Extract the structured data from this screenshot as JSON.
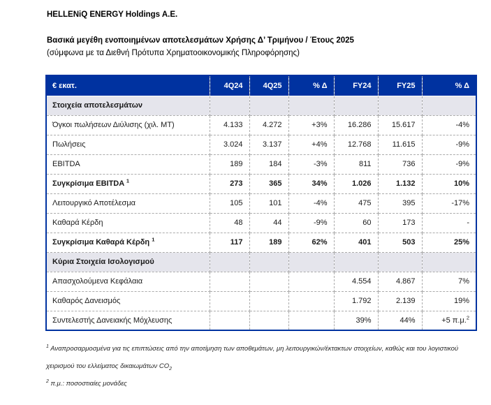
{
  "colors": {
    "header_bg": "#0032A0",
    "header_text": "#FFFFFF",
    "section_bg": "#E5E5EC",
    "grid_dash": "#ABABAB",
    "outer_border": "#0032A0",
    "body_text": "#1A1A1A"
  },
  "header": {
    "title": "HELLENiQ ENERGY Holdings A.E.",
    "subtitle": "Βασικά μεγέθη ενοποιημένων αποτελεσμάτων Χρήσης Δ’ Τριμήνου / Έτους 2025",
    "subtitle_note": "(σύμφωνα με τα Διεθνή Πρότυπα Χρηματοοικονομικής Πληροφόρησης)"
  },
  "table": {
    "columns": [
      "€ εκατ.",
      "4Q24",
      "4Q25",
      "% Δ",
      "FY24",
      "FY25",
      "% Δ"
    ],
    "rows": [
      {
        "type": "section",
        "label": "Στοιχεία αποτελεσμάτων"
      },
      {
        "type": "data",
        "label": "Όγκοι πωλήσεων Διύλισης (χιλ. ΜΤ)",
        "bold": false,
        "label_sup": "",
        "values": [
          "4.133",
          "4.272",
          "+3%",
          "16.286",
          "15.617",
          "-4%"
        ]
      },
      {
        "type": "data",
        "label": "Πωλήσεις",
        "bold": false,
        "label_sup": "",
        "values": [
          "3.024",
          "3.137",
          "+4%",
          "12.768",
          "11.615",
          "-9%"
        ]
      },
      {
        "type": "data",
        "label": "EBITDA",
        "bold": false,
        "label_sup": "",
        "values": [
          "189",
          "184",
          "-3%",
          "811",
          "736",
          "-9%"
        ]
      },
      {
        "type": "data",
        "label": "Συγκρίσιμα EBITDA",
        "bold": true,
        "label_sup": "1",
        "values": [
          "273",
          "365",
          "34%",
          "1.026",
          "1.132",
          "10%"
        ]
      },
      {
        "type": "data",
        "label": "Λειτουργικό Αποτέλεσμα",
        "bold": false,
        "label_sup": "",
        "values": [
          "105",
          "101",
          "-4%",
          "475",
          "395",
          "-17%"
        ]
      },
      {
        "type": "data",
        "label": "Καθαρά Κέρδη",
        "bold": false,
        "label_sup": "",
        "values": [
          "48",
          "44",
          "-9%",
          "60",
          "173",
          "-"
        ]
      },
      {
        "type": "data",
        "label": "Συγκρίσιμα Καθαρά Κέρδη",
        "bold": true,
        "label_sup": "1",
        "values": [
          "117",
          "189",
          "62%",
          "401",
          "503",
          "25%"
        ]
      },
      {
        "type": "section",
        "label": "Κύρια Στοιχεία Ισολογισμού"
      },
      {
        "type": "data",
        "label": "Απασχολούμενα Κεφάλαια",
        "bold": false,
        "label_sup": "",
        "values": [
          "",
          "",
          "",
          "4.554",
          "4.867",
          "7%"
        ]
      },
      {
        "type": "data",
        "label": "Καθαρός Δανεισμός",
        "bold": false,
        "label_sup": "",
        "values": [
          "",
          "",
          "",
          "1.792",
          "2.139",
          "19%"
        ]
      },
      {
        "type": "data",
        "label": "Συντελεστής Δανειακής Μόχλευσης",
        "bold": false,
        "label_sup": "",
        "values": [
          "",
          "",
          "",
          "39%",
          "44%",
          "+5 π.μ."
        ],
        "value_sups": [
          "",
          "",
          "",
          "",
          "",
          "2"
        ]
      }
    ]
  },
  "footnotes": [
    {
      "marker": "1",
      "text": " Αναπροσαρμοσμένα για τις επιπτώσεις από την αποτίμηση των αποθεμάτων, μη λειτουργικών/έκτακτων στοιχείων, καθώς και του λογιστικού χειρισμού του ελλείματος δικαιωμάτων CO",
      "sub": "2"
    },
    {
      "marker": "2",
      "text": " π.μ.: ποσοστιαίες μονάδες",
      "sub": ""
    }
  ]
}
